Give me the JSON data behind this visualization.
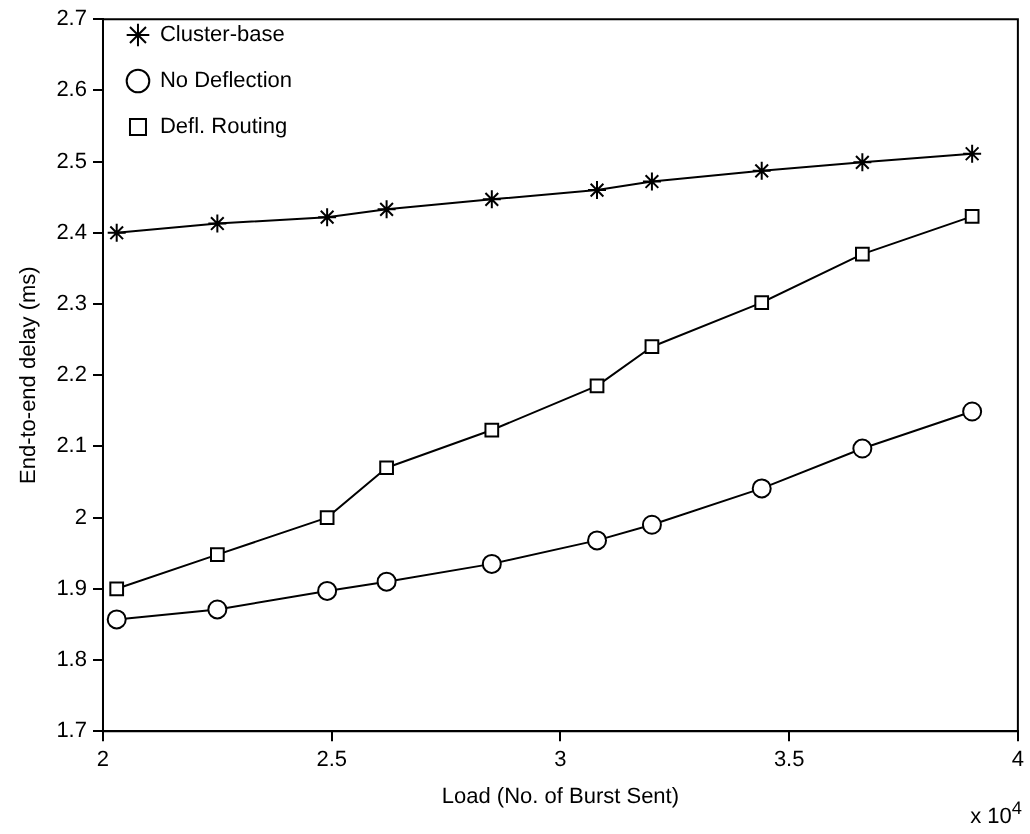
{
  "chart_data": {
    "type": "line",
    "xlabel": "Load (No. of Burst Sent)",
    "ylabel": "End-to-end delay (ms)",
    "x": [
      2.03,
      2.25,
      2.49,
      2.62,
      2.85,
      3.08,
      3.2,
      3.44,
      3.66,
      3.9
    ],
    "series": [
      {
        "name": "Cluster-base",
        "color": "#000000",
        "marker": "cross",
        "values": [
          2.4,
          2.413,
          2.422,
          2.433,
          2.447,
          2.46,
          2.472,
          2.487,
          2.499,
          2.511
        ]
      },
      {
        "name": "No Deflection",
        "color": "#000000",
        "marker": "circle",
        "values": [
          1.857,
          1.871,
          1.897,
          1.91,
          1.935,
          1.968,
          1.99,
          2.041,
          2.097,
          2.149
        ]
      },
      {
        "name": "Defl. Routing",
        "color": "#000000",
        "marker": "square",
        "values": [
          1.9,
          1.948,
          2.0,
          2.07,
          2.123,
          2.185,
          2.24,
          2.302,
          2.37,
          2.423
        ]
      }
    ],
    "xlim": [
      2,
      4
    ],
    "xticks": [
      2,
      2.5,
      3,
      3.5,
      4
    ],
    "ylim": [
      1.7,
      2.7
    ],
    "yticks": [
      1.7,
      1.8,
      1.9,
      2,
      2.1,
      2.2,
      2.3,
      2.4,
      2.5,
      2.6,
      2.7
    ],
    "annotations": [
      "x 10$^{4}$"
    ],
    "grid": false,
    "legend": "top left",
    "line_style": "solid"
  }
}
